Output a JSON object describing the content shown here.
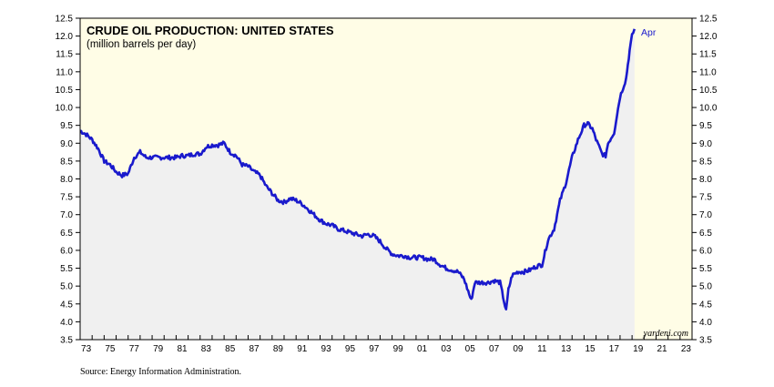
{
  "chart_data": {
    "type": "line",
    "title": "CRUDE OIL PRODUCTION: UNITED STATES",
    "subtitle": "(million barrels per day)",
    "source": "Source: Energy Information Administration.",
    "watermark": "yardeni.com",
    "annotation": "Apr",
    "colors": {
      "line": "#1a1acc",
      "plot_background": "#fffde6",
      "area_fill": "#f0f0f0",
      "forecast_zone": "#fffde6"
    },
    "x_ticks": [
      "73",
      "75",
      "77",
      "79",
      "81",
      "83",
      "85",
      "87",
      "89",
      "91",
      "93",
      "95",
      "97",
      "99",
      "01",
      "03",
      "05",
      "07",
      "09",
      "11",
      "13",
      "15",
      "17",
      "19",
      "21",
      "23"
    ],
    "x_range": [
      1973,
      2024
    ],
    "ylim": [
      3.5,
      12.5
    ],
    "y_ticks": [
      "3.5",
      "4.0",
      "4.5",
      "5.0",
      "5.5",
      "6.0",
      "6.5",
      "7.0",
      "7.5",
      "8.0",
      "8.5",
      "9.0",
      "9.5",
      "10.0",
      "10.5",
      "11.0",
      "11.5",
      "12.0",
      "12.5"
    ],
    "grid": false,
    "x": [
      1973.0,
      1973.5,
      1974.0,
      1974.5,
      1975.0,
      1975.5,
      1976.0,
      1976.5,
      1977.0,
      1977.5,
      1978.0,
      1978.5,
      1979.0,
      1979.5,
      1980.0,
      1980.5,
      1981.0,
      1981.5,
      1982.0,
      1982.5,
      1983.0,
      1983.5,
      1984.0,
      1984.5,
      1985.0,
      1985.5,
      1986.0,
      1986.5,
      1987.0,
      1987.5,
      1988.0,
      1988.5,
      1989.0,
      1989.5,
      1990.0,
      1990.5,
      1991.0,
      1991.5,
      1992.0,
      1992.5,
      1993.0,
      1993.5,
      1994.0,
      1994.5,
      1995.0,
      1995.5,
      1996.0,
      1996.5,
      1997.0,
      1997.5,
      1998.0,
      1998.5,
      1999.0,
      1999.5,
      2000.0,
      2000.5,
      2001.0,
      2001.5,
      2002.0,
      2002.5,
      2003.0,
      2003.5,
      2004.0,
      2004.5,
      2005.0,
      2005.6,
      2005.9,
      2006.5,
      2007.0,
      2007.5,
      2008.0,
      2008.5,
      2008.7,
      2009.0,
      2009.5,
      2010.0,
      2010.5,
      2011.0,
      2011.5,
      2012.0,
      2012.5,
      2013.0,
      2013.5,
      2014.0,
      2014.5,
      2015.0,
      2015.3,
      2015.7,
      2016.0,
      2016.5,
      2016.8,
      2017.0,
      2017.5,
      2018.0,
      2018.5,
      2018.8,
      2019.0,
      2019.2
    ],
    "values": [
      9.35,
      9.25,
      9.1,
      8.85,
      8.5,
      8.4,
      8.2,
      8.1,
      8.15,
      8.6,
      8.75,
      8.6,
      8.6,
      8.6,
      8.6,
      8.6,
      8.6,
      8.65,
      8.65,
      8.7,
      8.7,
      8.9,
      8.95,
      8.95,
      9.0,
      8.75,
      8.65,
      8.4,
      8.35,
      8.2,
      8.1,
      7.8,
      7.6,
      7.4,
      7.35,
      7.45,
      7.4,
      7.3,
      7.15,
      7.0,
      6.85,
      6.75,
      6.7,
      6.6,
      6.55,
      6.5,
      6.45,
      6.4,
      6.45,
      6.4,
      6.25,
      6.05,
      5.9,
      5.85,
      5.85,
      5.8,
      5.8,
      5.8,
      5.75,
      5.75,
      5.6,
      5.5,
      5.45,
      5.4,
      5.2,
      4.6,
      5.1,
      5.1,
      5.1,
      5.15,
      5.1,
      4.3,
      4.9,
      5.3,
      5.4,
      5.4,
      5.45,
      5.55,
      5.6,
      6.3,
      6.6,
      7.4,
      7.9,
      8.6,
      9.1,
      9.5,
      9.55,
      9.4,
      9.1,
      8.7,
      8.65,
      9.0,
      9.3,
      10.3,
      10.8,
      11.6,
      12.0,
      12.2
    ]
  }
}
